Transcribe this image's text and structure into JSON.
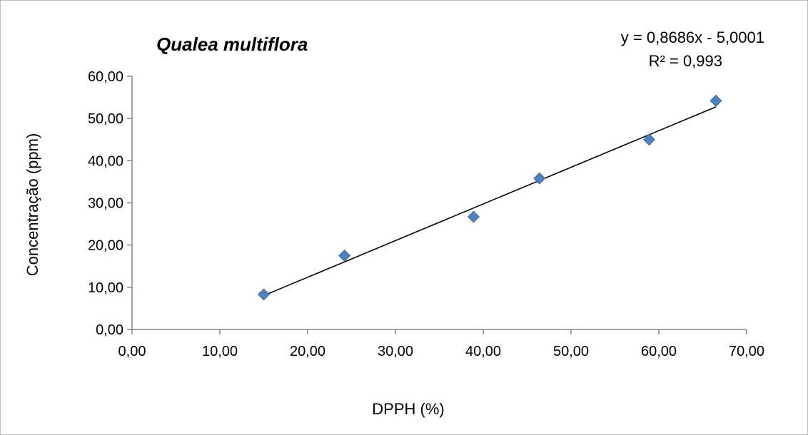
{
  "chart_data": {
    "type": "scatter",
    "title": "Qualea multiflora",
    "xlabel": "DPPH (%)",
    "ylabel": "Concentração (ppm)",
    "xlim": [
      0,
      70
    ],
    "ylim": [
      0,
      60
    ],
    "xticks": [
      0,
      10,
      20,
      30,
      40,
      50,
      60,
      70
    ],
    "yticks": [
      0,
      10,
      20,
      30,
      40,
      50,
      60
    ],
    "xtick_labels": [
      "0,00",
      "10,00",
      "20,00",
      "30,00",
      "40,00",
      "50,00",
      "60,00",
      "70,00"
    ],
    "ytick_labels": [
      "0,00",
      "10,00",
      "20,00",
      "30,00",
      "40,00",
      "50,00",
      "60,00"
    ],
    "grid": false,
    "points": [
      {
        "x": 15.0,
        "y": 8.3
      },
      {
        "x": 24.2,
        "y": 17.5
      },
      {
        "x": 38.9,
        "y": 26.7
      },
      {
        "x": 46.4,
        "y": 35.8
      },
      {
        "x": 58.9,
        "y": 45.0
      },
      {
        "x": 66.5,
        "y": 54.2
      }
    ],
    "marker_color": "#4f81bd",
    "trendline": {
      "slope": 0.8686,
      "intercept": -5.0001,
      "x_range": [
        15.0,
        66.5
      ],
      "color": "#000000",
      "equation_text": "y = 0,8686x - 5,0001",
      "r2_text": "R² = 0,993"
    }
  }
}
